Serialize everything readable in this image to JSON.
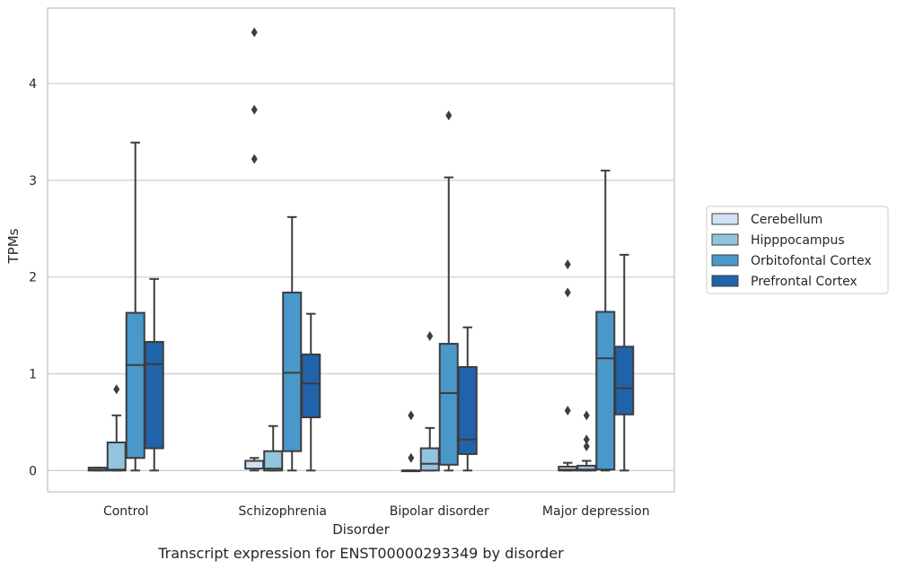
{
  "caption": "Transcript expression for ENST00000293349 by disorder",
  "chart_data": {
    "type": "box",
    "title": "",
    "xlabel": "Disorder",
    "ylabel": "TPMs",
    "ylim": [
      -0.22,
      4.78
    ],
    "yticks": [
      0,
      1,
      2,
      3,
      4
    ],
    "grid": "horizontal",
    "legend_position": "right",
    "categories": [
      "Control",
      "Schizophrenia",
      "Bipolar disorder",
      "Major depression"
    ],
    "series": [
      {
        "name": "Cerebellum",
        "color": "#cfe1f2",
        "boxes": [
          {
            "whisker_low": 0,
            "q1": 0,
            "median": 0.01,
            "q3": 0.03,
            "whisker_high": 0.03,
            "outliers": []
          },
          {
            "whisker_low": 0,
            "q1": 0.02,
            "median": 0.1,
            "q3": 0.1,
            "whisker_high": 0.13,
            "outliers": [
              3.22,
              3.73,
              4.53
            ]
          },
          {
            "whisker_low": 0,
            "q1": 0,
            "median": 0,
            "q3": 0,
            "whisker_high": 0,
            "outliers": [
              0.13,
              0.57
            ]
          },
          {
            "whisker_low": 0,
            "q1": 0,
            "median": 0.01,
            "q3": 0.04,
            "whisker_high": 0.08,
            "outliers": [
              0.62,
              1.84,
              2.13
            ]
          }
        ]
      },
      {
        "name": "Hipppocampus",
        "color": "#93c4de",
        "boxes": [
          {
            "whisker_low": 0,
            "q1": 0,
            "median": 0.01,
            "q3": 0.29,
            "whisker_high": 0.57,
            "outliers": [
              0.84
            ]
          },
          {
            "whisker_low": 0,
            "q1": 0,
            "median": 0.02,
            "q3": 0.2,
            "whisker_high": 0.46,
            "outliers": []
          },
          {
            "whisker_low": 0,
            "q1": 0,
            "median": 0.07,
            "q3": 0.23,
            "whisker_high": 0.44,
            "outliers": [
              1.39
            ]
          },
          {
            "whisker_low": 0,
            "q1": 0,
            "median": 0.01,
            "q3": 0.05,
            "whisker_high": 0.1,
            "outliers": [
              0.25,
              0.32,
              0.57
            ]
          }
        ]
      },
      {
        "name": "Orbitofontal Cortex",
        "color": "#4a98c9",
        "boxes": [
          {
            "whisker_low": 0,
            "q1": 0.13,
            "median": 1.09,
            "q3": 1.63,
            "whisker_high": 3.39,
            "outliers": []
          },
          {
            "whisker_low": 0,
            "q1": 0.2,
            "median": 1.01,
            "q3": 1.84,
            "whisker_high": 2.62,
            "outliers": []
          },
          {
            "whisker_low": 0,
            "q1": 0.06,
            "median": 0.8,
            "q3": 1.31,
            "whisker_high": 3.03,
            "outliers": [
              3.67
            ]
          },
          {
            "whisker_low": 0,
            "q1": 0.01,
            "median": 1.16,
            "q3": 1.64,
            "whisker_high": 3.1,
            "outliers": []
          }
        ]
      },
      {
        "name": "Prefrontal Cortex",
        "color": "#2163aa",
        "boxes": [
          {
            "whisker_low": 0,
            "q1": 0.23,
            "median": 1.1,
            "q3": 1.33,
            "whisker_high": 1.98,
            "outliers": []
          },
          {
            "whisker_low": 0,
            "q1": 0.55,
            "median": 0.9,
            "q3": 1.2,
            "whisker_high": 1.62,
            "outliers": []
          },
          {
            "whisker_low": 0,
            "q1": 0.17,
            "median": 0.32,
            "q3": 1.07,
            "whisker_high": 1.48,
            "outliers": []
          },
          {
            "whisker_low": 0,
            "q1": 0.58,
            "median": 0.85,
            "q3": 1.28,
            "whisker_high": 2.23,
            "outliers": []
          }
        ]
      }
    ]
  }
}
